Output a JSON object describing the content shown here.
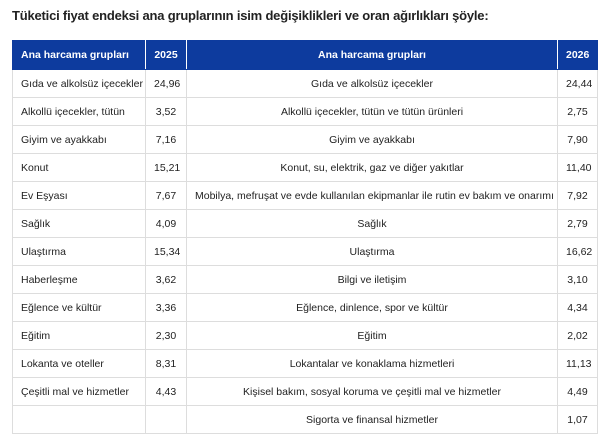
{
  "header": {
    "title": "Tüketici fiyat endeksi ana gruplarının isim değişiklikleri ve oran ağırlıkları şöyle:"
  },
  "table": {
    "columns": [
      "Ana harcama grupları",
      "2025",
      "Ana harcama grupları",
      "2026"
    ],
    "rows": [
      [
        "Gıda ve alkolsüz içecekler",
        "24,96",
        "Gıda ve alkolsüz içecekler",
        "24,44"
      ],
      [
        "Alkollü içecekler, tütün",
        "3,52",
        "Alkollü içecekler, tütün ve tütün ürünleri",
        "2,75"
      ],
      [
        "Giyim ve ayakkabı",
        "7,16",
        "Giyim ve ayakkabı",
        "7,90"
      ],
      [
        "Konut",
        "15,21",
        "Konut, su, elektrik, gaz ve diğer yakıtlar",
        "11,40"
      ],
      [
        "Ev Eşyası",
        "7,67",
        "Mobilya, mefruşat ve evde kullanılan ekipmanlar ile rutin ev bakım ve onarımı",
        "7,92"
      ],
      [
        "Sağlık",
        "4,09",
        "Sağlık",
        "2,79"
      ],
      [
        "Ulaştırma",
        "15,34",
        "Ulaştırma",
        "16,62"
      ],
      [
        "Haberleşme",
        "3,62",
        "Bilgi ve iletişim",
        "3,10"
      ],
      [
        "Eğlence ve kültür",
        "3,36",
        "Eğlence, dinlence, spor ve kültür",
        "4,34"
      ],
      [
        "Eğitim",
        "2,30",
        "Eğitim",
        "2,02"
      ],
      [
        "Lokanta ve oteller",
        "8,31",
        "Lokantalar ve konaklama hizmetleri",
        "11,13"
      ],
      [
        "Çeşitli mal ve hizmetler",
        "4,43",
        "Kişisel bakım, sosyal koruma ve çeşitli mal ve hizmetler",
        "4,49"
      ],
      [
        null,
        null,
        "Sigorta ve finansal hizmetler",
        "1,07"
      ]
    ]
  }
}
